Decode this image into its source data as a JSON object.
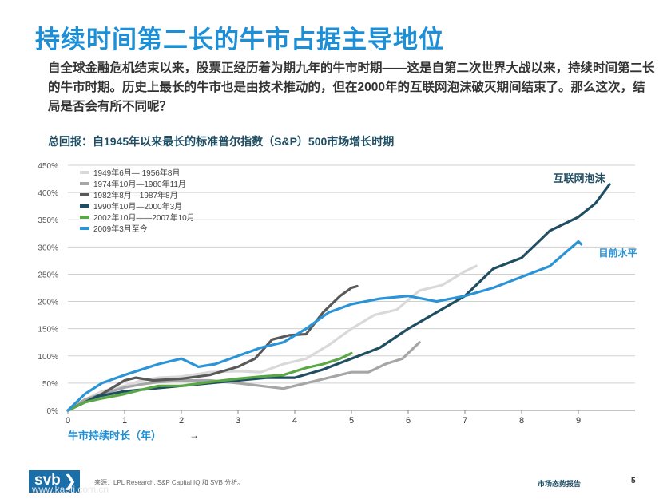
{
  "page": {
    "title": "持续时间第二长的牛市占据主导地位",
    "intro": "自全球金融危机结束以来，股票正经历着为期九年的牛市时期——这是自第二次世界大战以来，持续时间第二长的牛市时期。历史上最长的牛市也是由技术推动的，但在2000年的互联网泡沫破灭期间结束了。那么这次，结局是否会有所不同呢？",
    "subtitle": "总回报：自1945年以来最长的标准普尔指数（S&P）500市场增长时期",
    "source": "来源：LPL Research, S&P Capital IQ 和 SVB 分析。",
    "report": "市场态势报告",
    "page_number": "5",
    "logo_text": "svb",
    "logo_chevron": "❯",
    "watermark": "www.kaoti.com.cn"
  },
  "chart_data": {
    "type": "line",
    "title": "总回报：自1945年以来最长的标准普尔指数（S&P）500市场增长时期",
    "xlabel": "牛市持续时长（年）",
    "xlabel_arrow": "→",
    "ylabel": "",
    "xlim": [
      0,
      10
    ],
    "ylim": [
      0,
      450
    ],
    "x_ticks": [
      0,
      1,
      2,
      3,
      4,
      5,
      6,
      7,
      8,
      9
    ],
    "y_ticks": [
      0,
      50,
      100,
      150,
      200,
      250,
      300,
      350,
      400,
      450
    ],
    "y_tick_labels": [
      "0%",
      "50%",
      "100%",
      "150%",
      "200%",
      "250%",
      "300%",
      "350%",
      "400%",
      "450%"
    ],
    "legend_position": "top-left",
    "annotations": [
      {
        "text": "互联网泡沫",
        "series": "1990年10月—2000年3月"
      },
      {
        "text": "目前水平",
        "series": "2009年3月至今"
      }
    ],
    "series": [
      {
        "name": "1949年6月— 1956年8月",
        "color": "#d9d9d9",
        "x": [
          0,
          0.3,
          0.6,
          1.0,
          1.3,
          1.6,
          2.0,
          2.5,
          3.0,
          3.4,
          3.8,
          4.2,
          4.6,
          5.0,
          5.4,
          5.8,
          6.2,
          6.6,
          7.0,
          7.2
        ],
        "y": [
          0,
          20,
          35,
          45,
          55,
          60,
          62,
          70,
          72,
          70,
          85,
          95,
          120,
          150,
          175,
          185,
          220,
          230,
          255,
          265
        ]
      },
      {
        "name": "1974年10月—1980年11月",
        "color": "#a6a6a6",
        "x": [
          0,
          0.3,
          0.6,
          1.0,
          1.3,
          1.6,
          2.0,
          2.5,
          3.0,
          3.4,
          3.8,
          4.2,
          4.6,
          5.0,
          5.3,
          5.6,
          5.9,
          6.2
        ],
        "y": [
          0,
          20,
          30,
          42,
          48,
          52,
          55,
          55,
          50,
          45,
          40,
          50,
          60,
          70,
          70,
          85,
          95,
          125
        ]
      },
      {
        "name": "1982年8月—1987年8月",
        "color": "#595959",
        "x": [
          0,
          0.3,
          0.6,
          1.0,
          1.2,
          1.5,
          2.0,
          2.5,
          3.0,
          3.3,
          3.6,
          3.9,
          4.2,
          4.5,
          4.8,
          5.0,
          5.1
        ],
        "y": [
          0,
          15,
          30,
          55,
          60,
          55,
          58,
          65,
          80,
          95,
          130,
          138,
          140,
          180,
          210,
          225,
          228
        ]
      },
      {
        "name": "1990年10月—2000年3月",
        "color": "#1f4e63",
        "x": [
          0,
          0.5,
          1.0,
          1.5,
          2.0,
          2.5,
          3.0,
          3.5,
          4.0,
          4.5,
          5.0,
          5.5,
          6.0,
          6.5,
          7.0,
          7.5,
          8.0,
          8.5,
          9.0,
          9.3,
          9.55
        ],
        "y": [
          0,
          25,
          35,
          40,
          45,
          50,
          55,
          60,
          60,
          75,
          95,
          115,
          150,
          180,
          210,
          260,
          280,
          330,
          355,
          380,
          415
        ]
      },
      {
        "name": "2002年10月——2007年10月",
        "color": "#5aa844",
        "x": [
          0,
          0.3,
          0.6,
          1.0,
          1.3,
          1.6,
          2.0,
          2.5,
          3.0,
          3.4,
          3.8,
          4.2,
          4.5,
          4.8,
          5.0
        ],
        "y": [
          0,
          15,
          22,
          30,
          38,
          45,
          45,
          52,
          58,
          62,
          65,
          78,
          85,
          95,
          105
        ]
      },
      {
        "name": "2009年3月至今",
        "color": "#2a94d6",
        "x": [
          0,
          0.3,
          0.6,
          1.0,
          1.3,
          1.6,
          2.0,
          2.3,
          2.6,
          3.0,
          3.4,
          3.8,
          4.2,
          4.6,
          5.0,
          5.5,
          6.0,
          6.5,
          7.0,
          7.5,
          8.0,
          8.5,
          9.0,
          9.05
        ],
        "y": [
          0,
          30,
          50,
          65,
          75,
          85,
          95,
          80,
          85,
          100,
          115,
          125,
          150,
          180,
          195,
          205,
          210,
          200,
          210,
          225,
          245,
          265,
          310,
          305
        ]
      }
    ]
  }
}
